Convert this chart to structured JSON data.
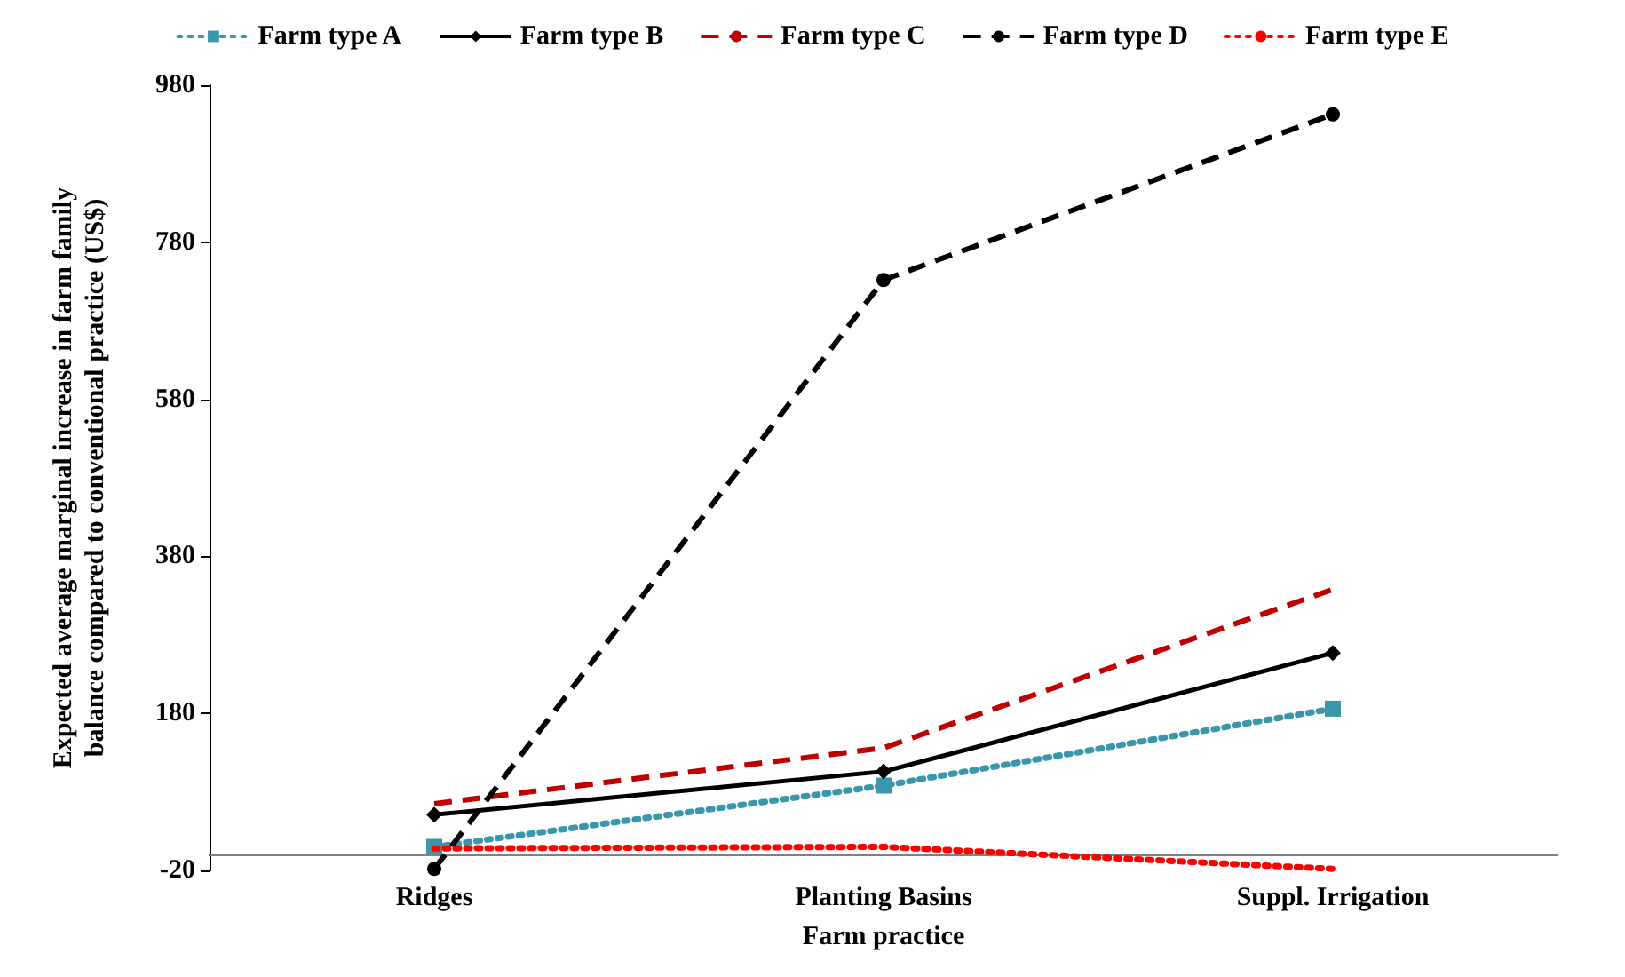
{
  "chart_data": {
    "type": "line",
    "xlabel": "Farm practice",
    "ylabel": "Expected average marginal increase in farm family balance compared to conventional practice (US$)",
    "categories": [
      "Ridges",
      "Planting Basins",
      "Suppl. Irrigation"
    ],
    "series": [
      {
        "name": "Farm type A",
        "color": "#3a97ab",
        "values": [
          10,
          88,
          186
        ],
        "marker": "square",
        "line_style": "dotted"
      },
      {
        "name": "Farm type B",
        "color": "#000000",
        "values": [
          51,
          106,
          257
        ],
        "marker": "diamond",
        "line_style": "solid"
      },
      {
        "name": "Farm type C",
        "color": "#c00000",
        "values": [
          65,
          136,
          338
        ],
        "marker": "none",
        "line_style": "dashed"
      },
      {
        "name": "Farm type D",
        "color": "#000000",
        "values": [
          -18,
          732,
          943
        ],
        "marker": "circle",
        "line_style": "dashed"
      },
      {
        "name": "Farm type E",
        "color": "#ff0000",
        "values": [
          8,
          10,
          -18
        ],
        "marker": "none",
        "line_style": "dotted"
      }
    ],
    "ylim": [
      -20,
      980
    ],
    "yticks": [
      -20,
      180,
      380,
      580,
      780,
      980
    ],
    "ref_lines": [
      {
        "axis": "y",
        "value": 0,
        "color": "#808080"
      }
    ],
    "grid": false,
    "legend": "top"
  }
}
